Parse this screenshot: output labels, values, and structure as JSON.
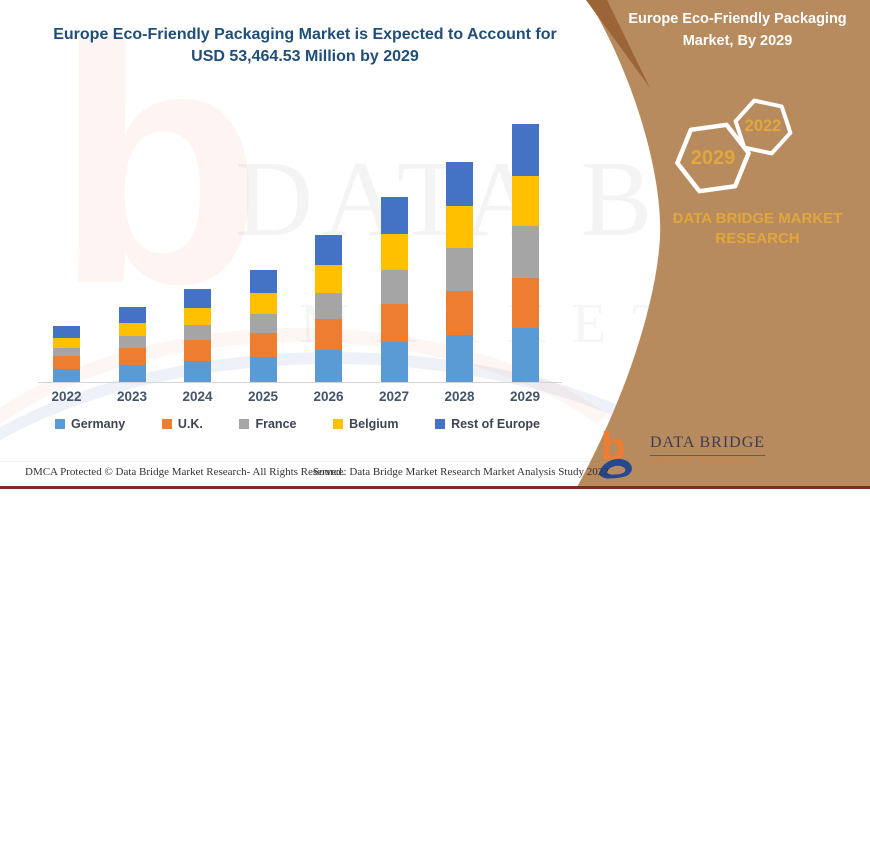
{
  "page": {
    "title_line1": "Europe Eco-Friendly Packaging Market is Expected to Account for",
    "title_line2": "USD 53,464.53 Million by 2029"
  },
  "chart_data": {
    "type": "bar",
    "stacked": true,
    "title": "Europe Eco-Friendly Packaging Market is Expected to Account for USD 53,464.53 Million by 2029",
    "unit": "USD Million",
    "categories": [
      "2022",
      "2023",
      "2024",
      "2025",
      "2026",
      "2027",
      "2028",
      "2029"
    ],
    "series": [
      {
        "name": "Germany",
        "color": "#5B9BD5",
        "values": [
          2634,
          3490,
          4280,
          5100,
          6620,
          8237,
          9683,
          11227.5
        ]
      },
      {
        "name": "U.K.",
        "color": "#ED7D31",
        "values": [
          2762,
          3601,
          4344,
          5086,
          6485,
          7919,
          9132,
          10372.1
        ]
      },
      {
        "name": "France",
        "color": "#A5A5A5",
        "values": [
          1717,
          2420,
          3149,
          3971,
          5449,
          7153,
          8858,
          10799.8
        ]
      },
      {
        "name": "Belgium",
        "color": "#FFC000",
        "values": [
          2077,
          2814,
          3532,
          4303,
          5714,
          7271,
          8749,
          10372.1
        ]
      },
      {
        "name": "Rest of Europe",
        "color": "#4472C4",
        "values": [
          2425,
          3228,
          3977,
          4760,
          6211,
          7766,
          9177,
          10693.03
        ]
      }
    ],
    "totals": [
      11615,
      15553,
      19282,
      23220,
      30479,
      38346,
      45599,
      53464.53
    ],
    "highlight_value_2029": "USD 53,464.53 Million",
    "legend_position": "bottom",
    "grid": false,
    "value_axis_visible": false
  },
  "side_panel": {
    "title_line1": "Europe Eco-Friendly Packaging",
    "title_line2": "Market, By 2029",
    "hexagon_primary": "2029",
    "hexagon_secondary": "2022",
    "brand_line1": "DATA BRIDGE MARKET",
    "brand_line2": "RESEARCH",
    "colors": {
      "panel": "#B88B5E",
      "accent": "#9C6538",
      "gold": "#E2A63D"
    }
  },
  "logo": {
    "text": "DATA BRIDGE",
    "subtext": "MARKET RESEARCH"
  },
  "watermark": {
    "line1": "DATA BRIDGE",
    "line2": "MARKET RESEARCH",
    "letter": "b"
  },
  "footer": {
    "dmca": "DMCA Protected © Data Bridge Market Research- All Rights Reserved.",
    "source": "Source: Data Bridge Market Research Market Analysis Study 2022"
  }
}
